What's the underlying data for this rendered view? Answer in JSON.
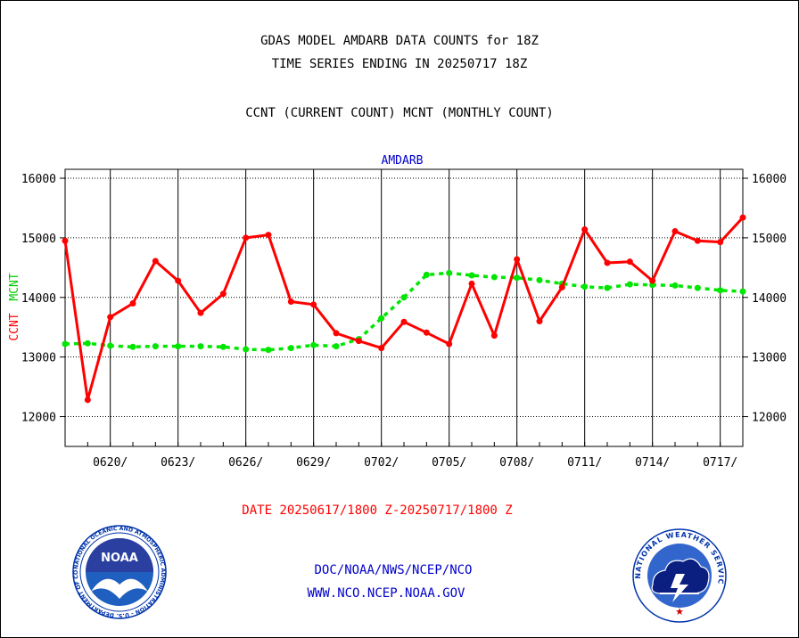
{
  "header": {
    "title_line1": "GDAS MODEL AMDARB DATA COUNTS for 18Z",
    "title_line2": "TIME SERIES ENDING IN 20250717 18Z",
    "subtitle": "CCNT (CURRENT COUNT) MCNT (MONTHLY COUNT)"
  },
  "footer": {
    "date_range": "DATE 20250617/1800 Z-20250717/1800 Z",
    "link_org": "DOC/NOAA/NWS/NCEP/NCO",
    "link_url": "WWW.NCO.NCEP.NOAA.GOV"
  },
  "logos": {
    "noaa_text": "NOAA",
    "noaa_ring": "NATIONAL OCEANIC AND ATMOSPHERIC ADMINISTRATION - U.S. DEPARTMENT OF COMMERCE",
    "nws_ring": "NATIONAL WEATHER SERVICE"
  },
  "colors": {
    "ccnt": "#ff0000",
    "mcnt": "#00e600",
    "label_blue": "#0000cc"
  },
  "chart_data": {
    "type": "line",
    "title": "AMDARB",
    "ylabel_ccnt": "CCNT",
    "ylabel_mcnt": "MCNT",
    "ylim": [
      11500,
      16150
    ],
    "yticks": [
      12000,
      13000,
      14000,
      15000,
      16000
    ],
    "xlim": [
      0,
      30
    ],
    "xticks": [
      {
        "label": "0620/",
        "x": 2
      },
      {
        "label": "0623/",
        "x": 5
      },
      {
        "label": "0626/",
        "x": 8
      },
      {
        "label": "0629/",
        "x": 11
      },
      {
        "label": "0702/",
        "x": 14
      },
      {
        "label": "0705/",
        "x": 17
      },
      {
        "label": "0708/",
        "x": 20
      },
      {
        "label": "0711/",
        "x": 23
      },
      {
        "label": "0714/",
        "x": 26
      },
      {
        "label": "0717/",
        "x": 29
      }
    ],
    "grid": true,
    "series": [
      {
        "name": "CCNT",
        "values": [
          14950,
          12280,
          13670,
          13900,
          14610,
          14280,
          13740,
          14060,
          15000,
          15050,
          13930,
          13880,
          13400,
          13270,
          13150,
          13590,
          13410,
          13220,
          14230,
          13360,
          14640,
          13600,
          14170,
          15140,
          14580,
          14600,
          14280,
          15110,
          14950,
          14930,
          15340
        ]
      },
      {
        "name": "MCNT",
        "values": [
          13220,
          13230,
          13190,
          13170,
          13180,
          13180,
          13180,
          13170,
          13130,
          13120,
          13150,
          13200,
          13180,
          13300,
          13650,
          14000,
          14380,
          14410,
          14370,
          14340,
          14330,
          14290,
          14230,
          14180,
          14160,
          14220,
          14210,
          14200,
          14160,
          14120,
          14100
        ]
      }
    ]
  }
}
